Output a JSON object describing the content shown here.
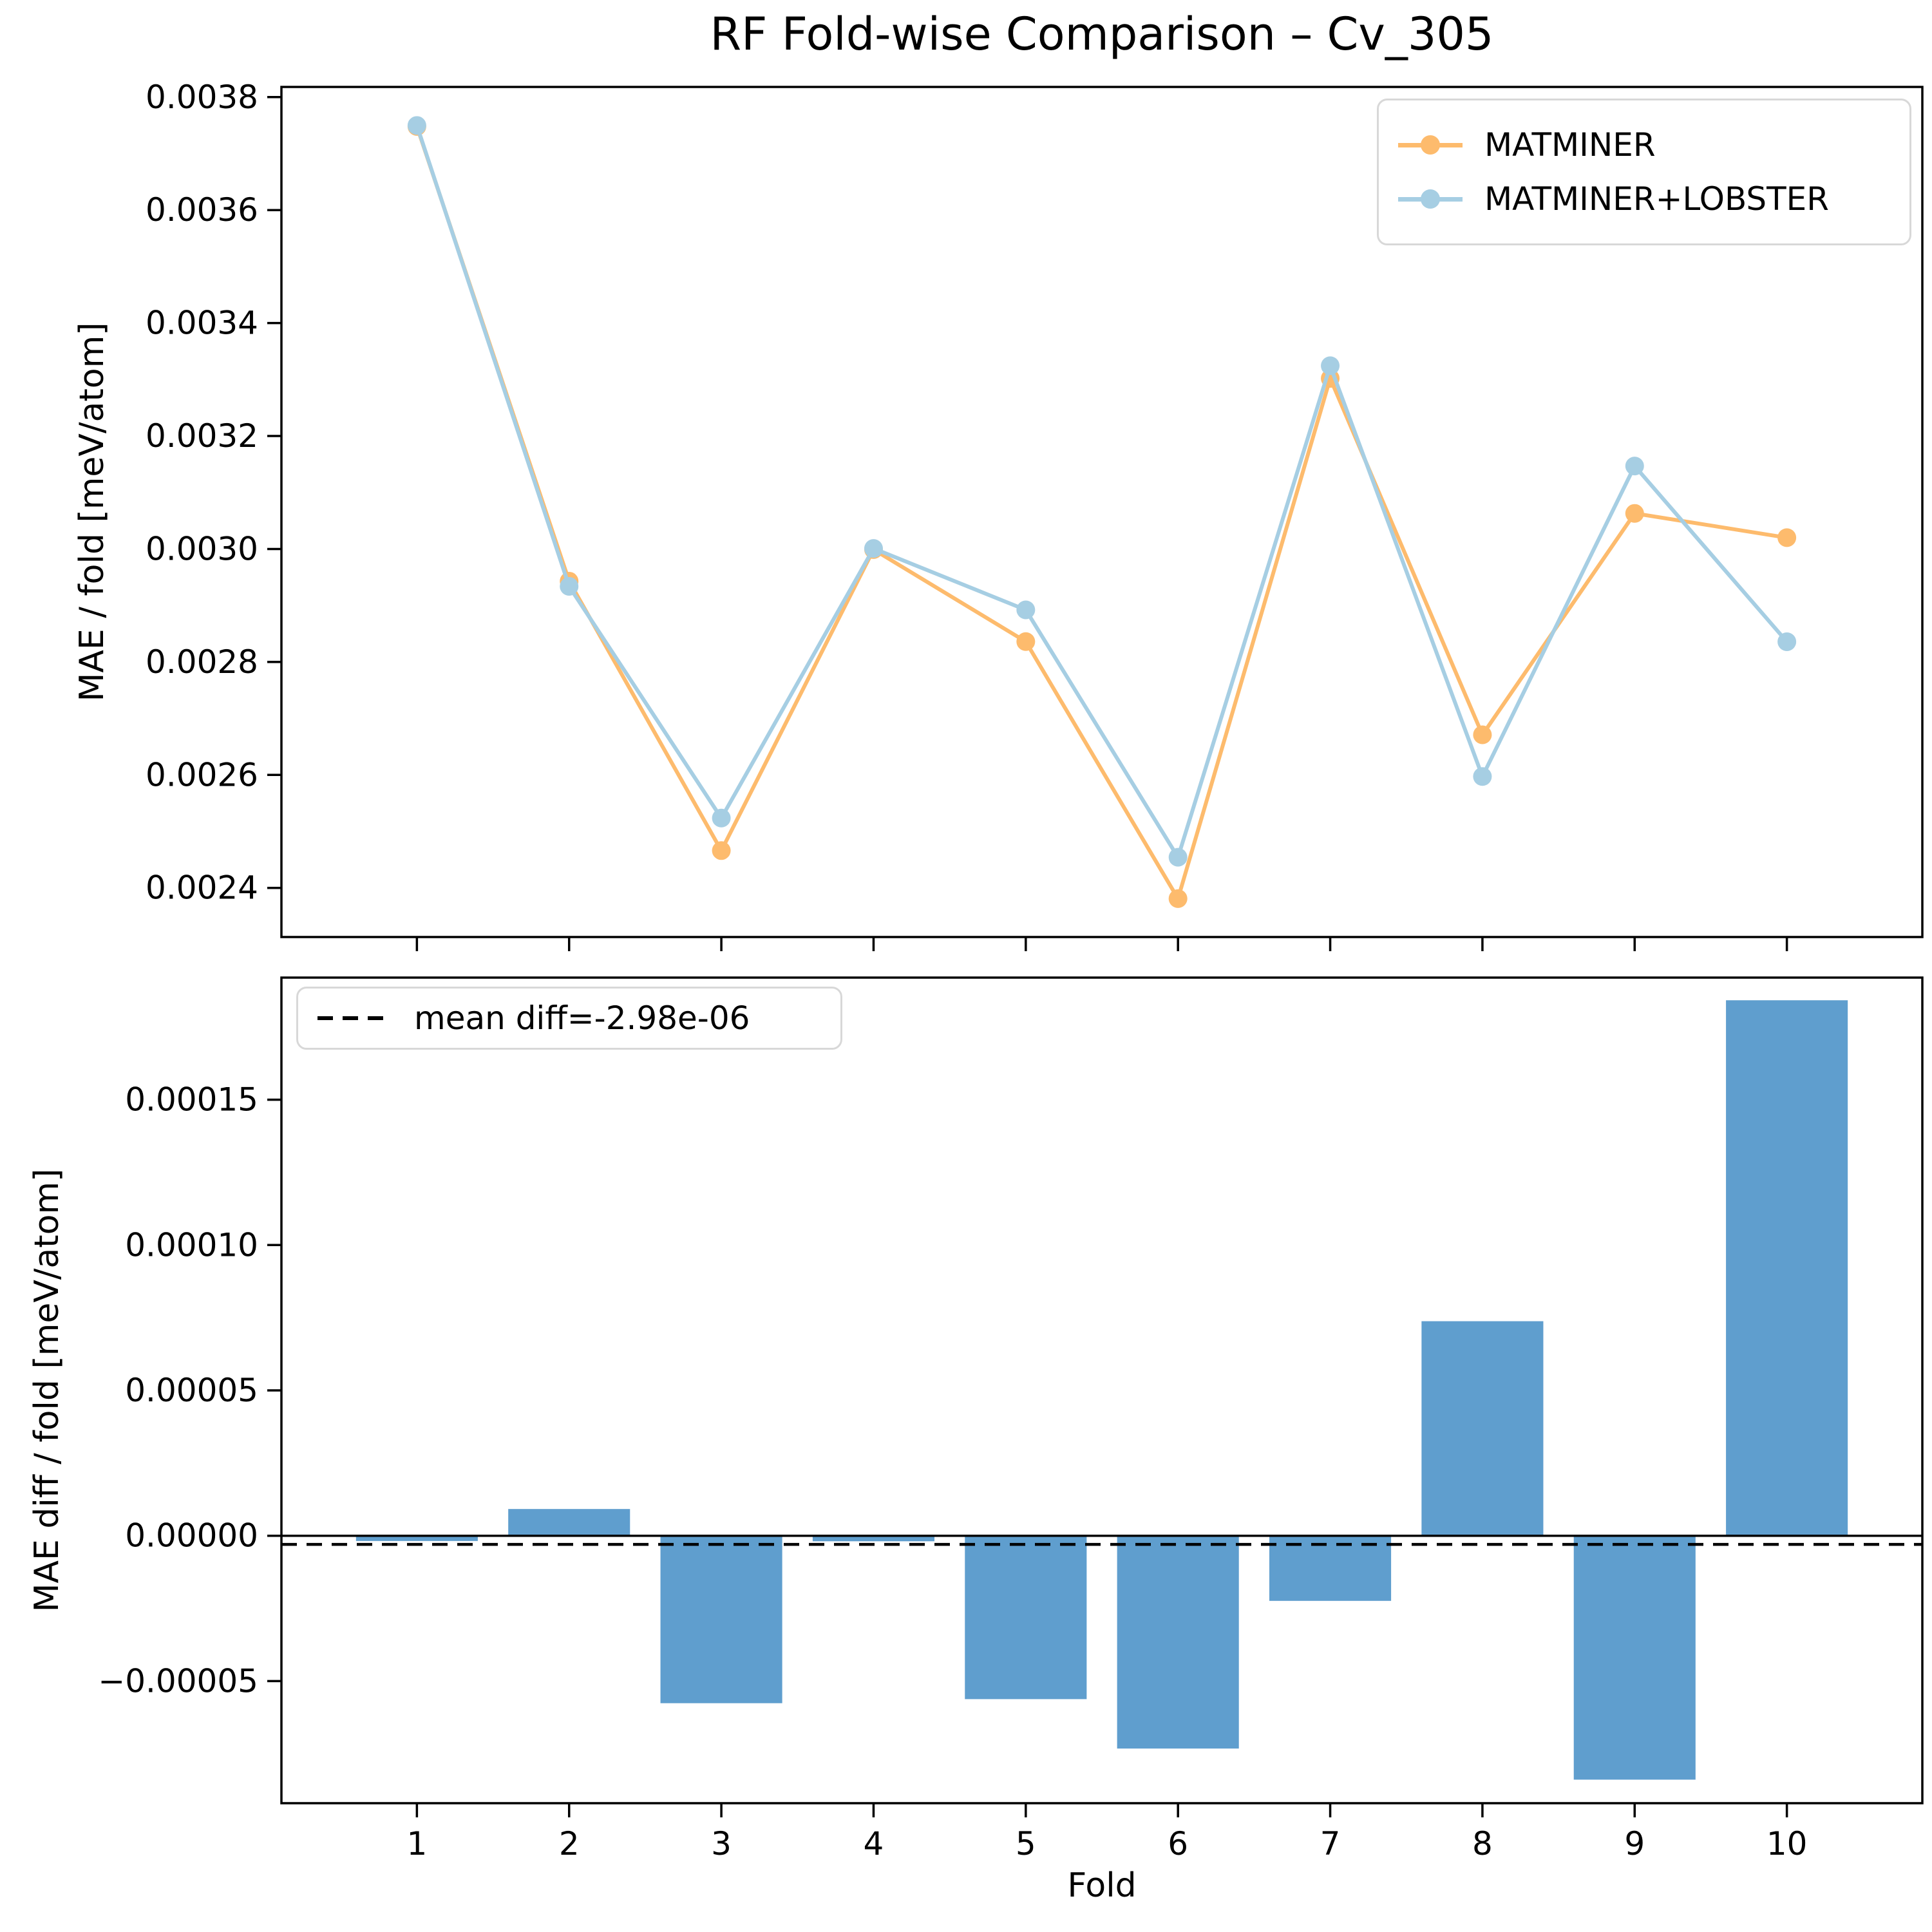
{
  "title": "RF Fold-wise Comparison – Cv_305",
  "chart_data": [
    {
      "type": "line",
      "x": [
        1,
        2,
        3,
        4,
        5,
        6,
        7,
        8,
        9,
        10
      ],
      "series": [
        {
          "name": "MATMINER",
          "color": "#FDBB6D",
          "values": [
            0.003748,
            0.002943,
            0.002466,
            0.002999,
            0.002836,
            0.002381,
            0.003302,
            0.002671,
            0.003063,
            0.00302
          ]
        },
        {
          "name": "MATMINER+LOBSTER",
          "color": "#A6CEE3",
          "values": [
            0.0037498,
            0.0029338,
            0.0025236,
            0.0030009,
            0.0028922,
            0.0024542,
            0.0033244,
            0.0025972,
            0.0031469,
            0.0028358
          ]
        }
      ],
      "ylabel": "MAE / fold [meV/atom]",
      "ylim": [
        0.002313,
        0.003818
      ],
      "xlim": [
        0.11,
        10.89
      ],
      "yticks": [
        {
          "v": 0.0024,
          "label": "0.0024"
        },
        {
          "v": 0.0026,
          "label": "0.0026"
        },
        {
          "v": 0.0028,
          "label": "0.0028"
        },
        {
          "v": 0.003,
          "label": "0.0030"
        },
        {
          "v": 0.0032,
          "label": "0.0032"
        },
        {
          "v": 0.0034,
          "label": "0.0034"
        },
        {
          "v": 0.0036,
          "label": "0.0036"
        },
        {
          "v": 0.0038,
          "label": "0.0038"
        }
      ],
      "legend_position": "upper right",
      "grid": false
    },
    {
      "type": "bar",
      "categories": [
        "1",
        "2",
        "3",
        "4",
        "5",
        "6",
        "7",
        "8",
        "9",
        "10"
      ],
      "values": [
        -1.8e-06,
        9.2e-06,
        -5.76e-05,
        -1.9e-06,
        -5.62e-05,
        -7.32e-05,
        -2.24e-05,
        7.38e-05,
        -8.39e-05,
        0.0001842
      ],
      "bar_color": "#5F9ECE",
      "bar_width": 0.8,
      "xlabel": "Fold",
      "ylabel": "MAE diff / fold [meV/atom]",
      "ylim": [
        -9.2e-05,
        0.000192
      ],
      "xlim": [
        0.11,
        10.89
      ],
      "yticks": [
        {
          "v": -5e-05,
          "label": "−0.00005"
        },
        {
          "v": 0.0,
          "label": "0.00000"
        },
        {
          "v": 5e-05,
          "label": "0.00005"
        },
        {
          "v": 0.0001,
          "label": "0.00010"
        },
        {
          "v": 0.00015,
          "label": "0.00015"
        }
      ],
      "zero_line": {
        "color": "#000000",
        "style": "solid"
      },
      "mean_line": {
        "value": -2.98e-06,
        "label": "mean diff=-2.98e-06",
        "color": "#000000",
        "style": "dashed"
      },
      "legend_position": "upper left",
      "grid": false
    }
  ]
}
